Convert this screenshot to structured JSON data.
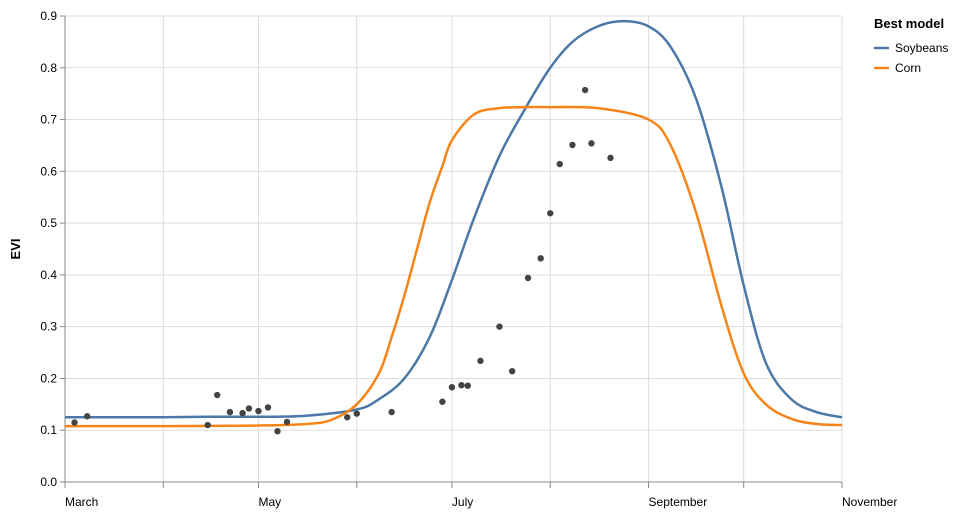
{
  "chart_data": {
    "type": "line",
    "title": "",
    "xlabel": "",
    "ylabel": "EVI",
    "x_tick_labels": [
      "March",
      "May",
      "July",
      "September",
      "November"
    ],
    "x_range": [
      "2017-03-01",
      "2017-11-01"
    ],
    "ylim": [
      0,
      0.9
    ],
    "y_ticks": [
      0.0,
      0.1,
      0.2,
      0.3,
      0.4,
      0.5,
      0.6,
      0.7,
      0.8,
      0.9
    ],
    "grid": true,
    "legend": {
      "title": "Best model",
      "position": "top-right",
      "items": [
        {
          "name": "Soybeans",
          "color": "#4c78a8"
        },
        {
          "name": "Corn",
          "color": "#f58518"
        }
      ]
    },
    "series": [
      {
        "name": "Soybeans",
        "color": "#4c78a8",
        "x": [
          "2017-03-01",
          "2017-03-16",
          "2017-04-01",
          "2017-04-16",
          "2017-05-01",
          "2017-05-16",
          "2017-06-01",
          "2017-06-08",
          "2017-06-16",
          "2017-06-24",
          "2017-07-01",
          "2017-07-08",
          "2017-07-16",
          "2017-07-24",
          "2017-08-01",
          "2017-08-08",
          "2017-08-16",
          "2017-08-24",
          "2017-09-01",
          "2017-09-08",
          "2017-09-16",
          "2017-09-24",
          "2017-10-01",
          "2017-10-08",
          "2017-10-16",
          "2017-10-24",
          "2017-11-01"
        ],
        "y": [
          0.125,
          0.125,
          0.125,
          0.126,
          0.126,
          0.128,
          0.14,
          0.16,
          0.2,
          0.28,
          0.39,
          0.51,
          0.63,
          0.72,
          0.8,
          0.85,
          0.88,
          0.89,
          0.88,
          0.84,
          0.74,
          0.57,
          0.38,
          0.23,
          0.16,
          0.135,
          0.125
        ]
      },
      {
        "name": "Corn",
        "color": "#f58518",
        "x": [
          "2017-03-01",
          "2017-04-01",
          "2017-05-01",
          "2017-05-16",
          "2017-05-24",
          "2017-06-01",
          "2017-06-08",
          "2017-06-12",
          "2017-06-16",
          "2017-06-20",
          "2017-06-24",
          "2017-06-28",
          "2017-07-01",
          "2017-07-08",
          "2017-07-16",
          "2017-07-24",
          "2017-08-01",
          "2017-08-16",
          "2017-09-01",
          "2017-09-08",
          "2017-09-16",
          "2017-09-24",
          "2017-10-01",
          "2017-10-08",
          "2017-10-16",
          "2017-10-24",
          "2017-11-01"
        ],
        "y": [
          0.108,
          0.108,
          0.109,
          0.112,
          0.12,
          0.15,
          0.21,
          0.28,
          0.36,
          0.45,
          0.54,
          0.61,
          0.66,
          0.71,
          0.722,
          0.724,
          0.724,
          0.722,
          0.7,
          0.65,
          0.52,
          0.34,
          0.21,
          0.15,
          0.122,
          0.112,
          0.11
        ]
      }
    ],
    "points": {
      "x": [
        "2017-03-04",
        "2017-03-08",
        "2017-04-15",
        "2017-04-18",
        "2017-04-22",
        "2017-04-26",
        "2017-04-28",
        "2017-05-01",
        "2017-05-04",
        "2017-05-07",
        "2017-05-10",
        "2017-05-29",
        "2017-06-01",
        "2017-06-12",
        "2017-06-28",
        "2017-07-01",
        "2017-07-04",
        "2017-07-06",
        "2017-07-10",
        "2017-07-16",
        "2017-07-20",
        "2017-07-25",
        "2017-07-29",
        "2017-08-01",
        "2017-08-04",
        "2017-08-08",
        "2017-08-12",
        "2017-08-14",
        "2017-08-20"
      ],
      "y": [
        0.115,
        0.127,
        0.11,
        0.168,
        0.135,
        0.133,
        0.142,
        0.137,
        0.144,
        0.098,
        0.116,
        0.125,
        0.132,
        0.135,
        0.155,
        0.183,
        0.187,
        0.186,
        0.234,
        0.3,
        0.214,
        0.394,
        0.432,
        0.519,
        0.614,
        0.651,
        0.757,
        0.654,
        0.626
      ]
    }
  }
}
